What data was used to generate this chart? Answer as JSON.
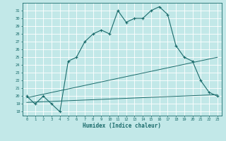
{
  "xlabel": "Humidex (Indice chaleur)",
  "bg_color": "#c2e8e8",
  "line_color": "#1a6b6b",
  "grid_color": "#b0d8d8",
  "xlim": [
    -0.5,
    23.5
  ],
  "ylim": [
    17.5,
    32.0
  ],
  "xticks": [
    0,
    1,
    2,
    3,
    4,
    5,
    6,
    7,
    8,
    9,
    10,
    11,
    12,
    13,
    14,
    15,
    16,
    17,
    18,
    19,
    20,
    21,
    22,
    23
  ],
  "yticks": [
    18,
    19,
    20,
    21,
    22,
    23,
    24,
    25,
    26,
    27,
    28,
    29,
    30,
    31
  ],
  "main_x": [
    0,
    1,
    2,
    3,
    4,
    5,
    6,
    7,
    8,
    9,
    10,
    11,
    12,
    13,
    14,
    15,
    16,
    17,
    18,
    19,
    20,
    21,
    22,
    23
  ],
  "main_y": [
    20.0,
    19.0,
    20.0,
    19.0,
    18.0,
    24.5,
    25.0,
    27.0,
    28.0,
    28.5,
    28.0,
    31.0,
    29.5,
    30.0,
    30.0,
    31.0,
    31.5,
    30.5,
    26.5,
    25.0,
    24.5,
    22.0,
    20.5,
    20.0
  ],
  "line1_x": [
    0,
    23
  ],
  "line1_y": [
    19.8,
    25.0
  ],
  "line2_x": [
    0,
    23
  ],
  "line2_y": [
    19.2,
    20.2
  ],
  "figsize": [
    3.2,
    2.0
  ],
  "dpi": 100
}
